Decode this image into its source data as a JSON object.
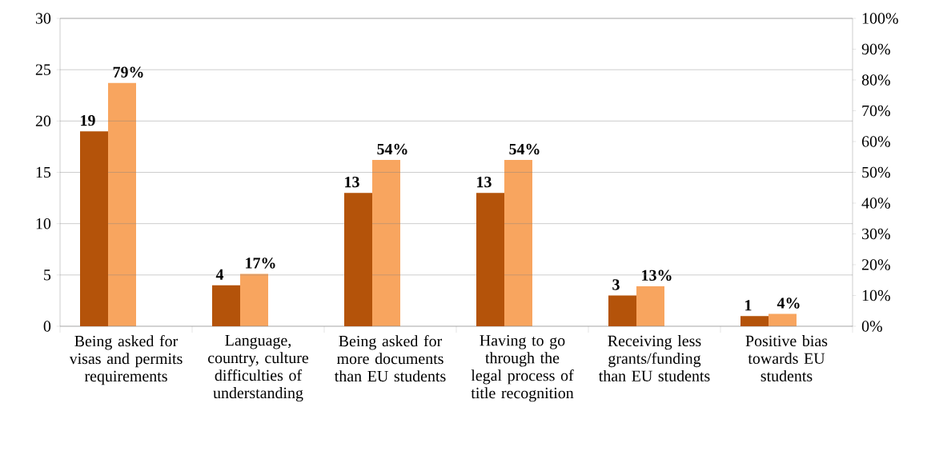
{
  "chart_data": {
    "type": "bar",
    "categories": [
      "Being asked for visas and permits requirements",
      "Language, country, culture difficulties of understanding",
      "Being asked for more documents than EU students",
      "Having to go through the legal process of title recognition",
      "Receiving less grants/funding than EU students",
      "Positive bias towards EU students"
    ],
    "series": [
      {
        "color": "#b4530a",
        "values": [
          19,
          4,
          13,
          13,
          3,
          1
        ],
        "value_labels": [
          "19",
          "4",
          "13",
          "13",
          "3",
          "1"
        ]
      },
      {
        "color": "#f8a55f",
        "axis": "y2",
        "values": [
          79,
          17,
          54,
          54,
          13,
          4
        ],
        "value_labels": [
          "79%",
          "17%",
          "54%",
          "54%",
          "13%",
          "4%"
        ]
      }
    ],
    "ylim": [
      0,
      30
    ],
    "yticks": [
      0,
      5,
      10,
      15,
      20,
      25,
      30
    ],
    "y2lim": [
      0,
      100
    ],
    "y2ticks": [
      {
        "value": 0,
        "label": "0%"
      },
      {
        "value": 10,
        "label": "10%"
      },
      {
        "value": 20,
        "label": "20%"
      },
      {
        "value": 30,
        "label": "30%"
      },
      {
        "value": 40,
        "label": "40%"
      },
      {
        "value": 50,
        "label": "50%"
      },
      {
        "value": 60,
        "label": "60%"
      },
      {
        "value": 70,
        "label": "70%"
      },
      {
        "value": 80,
        "label": "80%"
      },
      {
        "value": 90,
        "label": "90%"
      },
      {
        "value": 100,
        "label": "100%"
      }
    ],
    "grid": "y",
    "legend": false
  }
}
